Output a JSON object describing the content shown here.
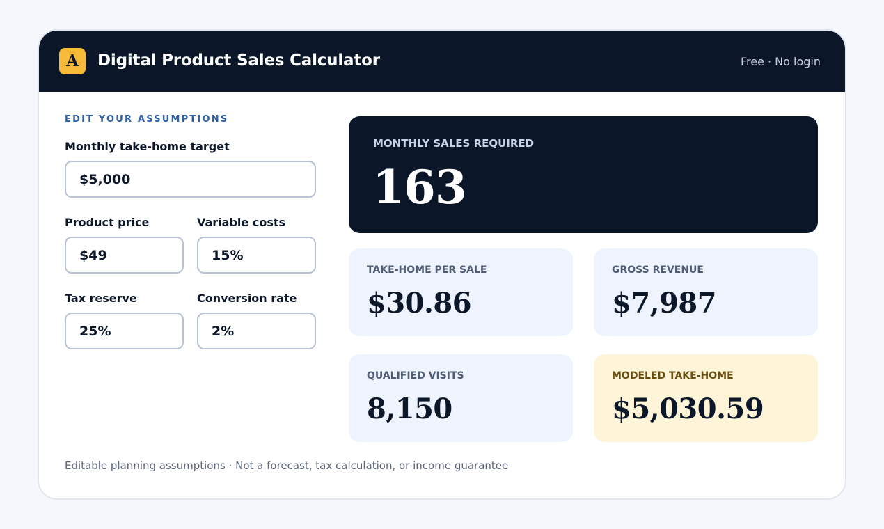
{
  "header": {
    "logo_letter": "A",
    "title": "Digital Product Sales Calculator",
    "meta": "Free · No login"
  },
  "assumptions": {
    "section_label": "EDIT YOUR ASSUMPTIONS",
    "monthly_target": {
      "label": "Monthly take-home target",
      "value": "$5,000"
    },
    "product_price": {
      "label": "Product price",
      "value": "$49"
    },
    "variable_costs": {
      "label": "Variable costs",
      "value": "15%"
    },
    "tax_reserve": {
      "label": "Tax reserve",
      "value": "25%"
    },
    "conversion_rate": {
      "label": "Conversion rate",
      "value": "2%"
    }
  },
  "results": {
    "monthly_sales": {
      "label": "MONTHLY SALES REQUIRED",
      "value": "163"
    },
    "take_home_per_sale": {
      "label": "TAKE-HOME PER SALE",
      "value": "$30.86"
    },
    "gross_revenue": {
      "label": "GROSS REVENUE",
      "value": "$7,987"
    },
    "qualified_visits": {
      "label": "QUALIFIED VISITS",
      "value": "8,150"
    },
    "modeled_take_home": {
      "label": "MODELED TAKE-HOME",
      "value": "$5,030.59"
    }
  },
  "footer": {
    "note": "Editable planning assumptions · Not a forecast, tax calculation, or income guarantee"
  },
  "colors": {
    "header_bg": "#0b1729",
    "logo_bg": "#f6b938",
    "section_label": "#2f5fa6",
    "metric_bg": "#eef3fd",
    "highlight_bg": "#fef5d9"
  }
}
